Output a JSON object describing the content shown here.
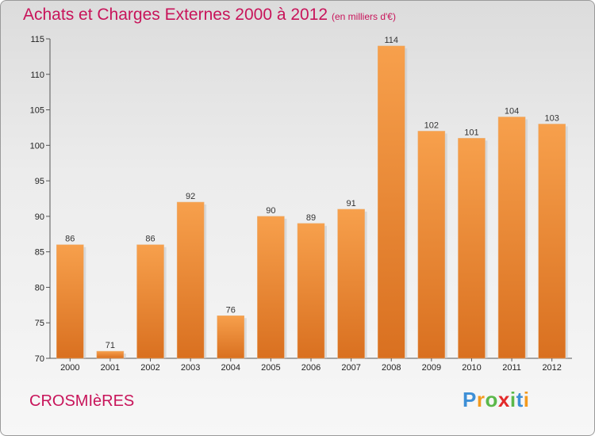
{
  "header": {
    "title": "Achats et Charges Externes 2000 à 2012",
    "subtitle": "(en milliers d'€)"
  },
  "footer": {
    "commune": "CROSMIèRES",
    "logo_text": "Proxiti"
  },
  "colors": {
    "title": "#c8145a",
    "bar_light": "#f7a04c",
    "bar_dark": "#d97020"
  },
  "chart_data": {
    "type": "bar",
    "title": "Achats et Charges Externes 2000 à 2012",
    "subtitle": "(en milliers d'€)",
    "xlabel": "",
    "ylabel": "",
    "categories": [
      "2000",
      "2001",
      "2002",
      "2003",
      "2004",
      "2005",
      "2006",
      "2007",
      "2008",
      "2009",
      "2010",
      "2011",
      "2012"
    ],
    "values": [
      86,
      71,
      86,
      92,
      76,
      90,
      89,
      91,
      114,
      102,
      101,
      104,
      103
    ],
    "ylim": [
      70,
      115
    ],
    "yticks": [
      70,
      75,
      80,
      85,
      90,
      95,
      100,
      105,
      110,
      115
    ],
    "grid": false,
    "data_labels": true
  }
}
